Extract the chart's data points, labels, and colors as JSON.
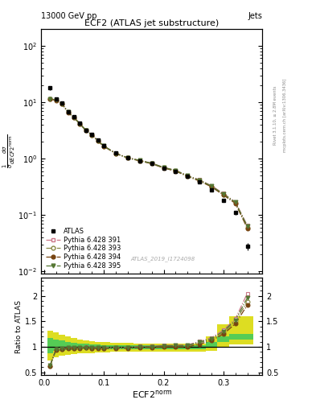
{
  "title": "ECF2 (ATLAS jet substructure)",
  "top_left_label": "13000 GeV pp",
  "top_right_label": "Jets",
  "xlabel": "ECF2$^{\\rm norm}$",
  "ylabel_main": "$\\frac{1}{\\sigma}\\frac{d\\sigma}{dECF2^{\\rm norm}}$",
  "ylabel_ratio": "Ratio to ATLAS",
  "watermark": "ATLAS_2019_I1724098",
  "right_label_top": "Rivet 3.1.10, ≥ 2.8M events",
  "right_label_bot": "mcplots.cern.ch [arXiv:1306.3436]",
  "x_data": [
    0.01,
    0.02,
    0.03,
    0.04,
    0.05,
    0.06,
    0.07,
    0.08,
    0.09,
    0.1,
    0.12,
    0.14,
    0.16,
    0.18,
    0.2,
    0.22,
    0.24,
    0.26,
    0.28,
    0.3,
    0.32,
    0.34
  ],
  "atlas_y": [
    18.0,
    11.5,
    9.8,
    6.8,
    5.5,
    4.2,
    3.2,
    2.7,
    2.1,
    1.7,
    1.25,
    1.05,
    0.92,
    0.82,
    0.68,
    0.6,
    0.48,
    0.38,
    0.28,
    0.18,
    0.11,
    0.028
  ],
  "atlas_yerr": [
    1.5,
    0.8,
    0.6,
    0.4,
    0.3,
    0.2,
    0.15,
    0.12,
    0.1,
    0.08,
    0.06,
    0.05,
    0.04,
    0.04,
    0.03,
    0.03,
    0.02,
    0.02,
    0.015,
    0.012,
    0.008,
    0.004
  ],
  "py391_y": [
    11.5,
    11.0,
    9.5,
    6.7,
    5.4,
    4.15,
    3.18,
    2.65,
    2.08,
    1.68,
    1.24,
    1.04,
    0.93,
    0.83,
    0.7,
    0.62,
    0.5,
    0.42,
    0.33,
    0.24,
    0.17,
    0.065
  ],
  "py393_y": [
    11.4,
    10.9,
    9.4,
    6.65,
    5.35,
    4.12,
    3.16,
    2.63,
    2.06,
    1.66,
    1.23,
    1.03,
    0.92,
    0.82,
    0.69,
    0.61,
    0.49,
    0.41,
    0.32,
    0.23,
    0.165,
    0.06
  ],
  "py394_y": [
    11.3,
    10.8,
    9.3,
    6.6,
    5.3,
    4.1,
    3.14,
    2.61,
    2.04,
    1.64,
    1.22,
    1.02,
    0.91,
    0.81,
    0.68,
    0.6,
    0.48,
    0.4,
    0.315,
    0.225,
    0.16,
    0.058
  ],
  "py395_y": [
    11.45,
    10.95,
    9.45,
    6.68,
    5.38,
    4.13,
    3.17,
    2.64,
    2.07,
    1.67,
    1.235,
    1.035,
    0.925,
    0.825,
    0.695,
    0.615,
    0.495,
    0.415,
    0.325,
    0.235,
    0.168,
    0.063
  ],
  "ratio_391": [
    0.64,
    0.96,
    0.97,
    0.99,
    0.98,
    0.99,
    0.994,
    0.98,
    0.99,
    0.99,
    0.992,
    0.99,
    1.01,
    1.01,
    1.03,
    1.03,
    1.04,
    1.105,
    1.18,
    1.33,
    1.55,
    2.05
  ],
  "ratio_393": [
    0.63,
    0.948,
    0.959,
    0.978,
    0.973,
    0.981,
    0.988,
    0.974,
    0.981,
    0.976,
    0.984,
    0.981,
    1.0,
    1.0,
    1.015,
    1.017,
    1.021,
    1.079,
    1.143,
    1.278,
    1.5,
    1.89
  ],
  "ratio_394": [
    0.628,
    0.939,
    0.949,
    0.971,
    0.964,
    0.976,
    0.981,
    0.967,
    0.971,
    0.965,
    0.976,
    0.971,
    0.989,
    0.988,
    1.0,
    1.0,
    1.0,
    1.053,
    1.125,
    1.25,
    1.455,
    1.82
  ],
  "ratio_395": [
    0.636,
    0.952,
    0.964,
    0.982,
    0.978,
    0.983,
    0.991,
    0.978,
    0.986,
    0.982,
    0.988,
    0.986,
    1.005,
    1.005,
    1.022,
    1.025,
    1.031,
    1.092,
    1.161,
    1.306,
    1.527,
    1.96
  ],
  "green_band_low": [
    0.87,
    0.92,
    0.92,
    0.93,
    0.94,
    0.95,
    0.95,
    0.95,
    0.96,
    0.96,
    0.96,
    0.96,
    0.96,
    0.96,
    0.96,
    0.96,
    0.96,
    0.96,
    1.0,
    1.1,
    1.15,
    1.15
  ],
  "green_band_high": [
    1.18,
    1.15,
    1.12,
    1.1,
    1.08,
    1.07,
    1.06,
    1.05,
    1.05,
    1.04,
    1.04,
    1.04,
    1.04,
    1.04,
    1.04,
    1.04,
    1.04,
    1.04,
    1.1,
    1.2,
    1.25,
    1.25
  ],
  "yellow_band_low": [
    0.74,
    0.8,
    0.82,
    0.84,
    0.86,
    0.87,
    0.88,
    0.88,
    0.89,
    0.89,
    0.9,
    0.9,
    0.9,
    0.9,
    0.9,
    0.9,
    0.9,
    0.9,
    0.92,
    1.0,
    1.05,
    1.05
  ],
  "yellow_band_high": [
    1.32,
    1.28,
    1.24,
    1.2,
    1.17,
    1.14,
    1.12,
    1.11,
    1.1,
    1.09,
    1.08,
    1.08,
    1.07,
    1.07,
    1.07,
    1.07,
    1.07,
    1.07,
    1.2,
    1.45,
    1.6,
    1.6
  ],
  "color_391": "#cc7788",
  "color_393": "#888844",
  "color_394": "#774411",
  "color_395": "#557733",
  "color_atlas": "black",
  "color_green": "#55cc55",
  "color_yellow": "#dddd22",
  "ylim_main": [
    0.009,
    200
  ],
  "ylim_ratio": [
    0.45,
    2.35
  ],
  "xlim": [
    -0.005,
    0.365
  ]
}
